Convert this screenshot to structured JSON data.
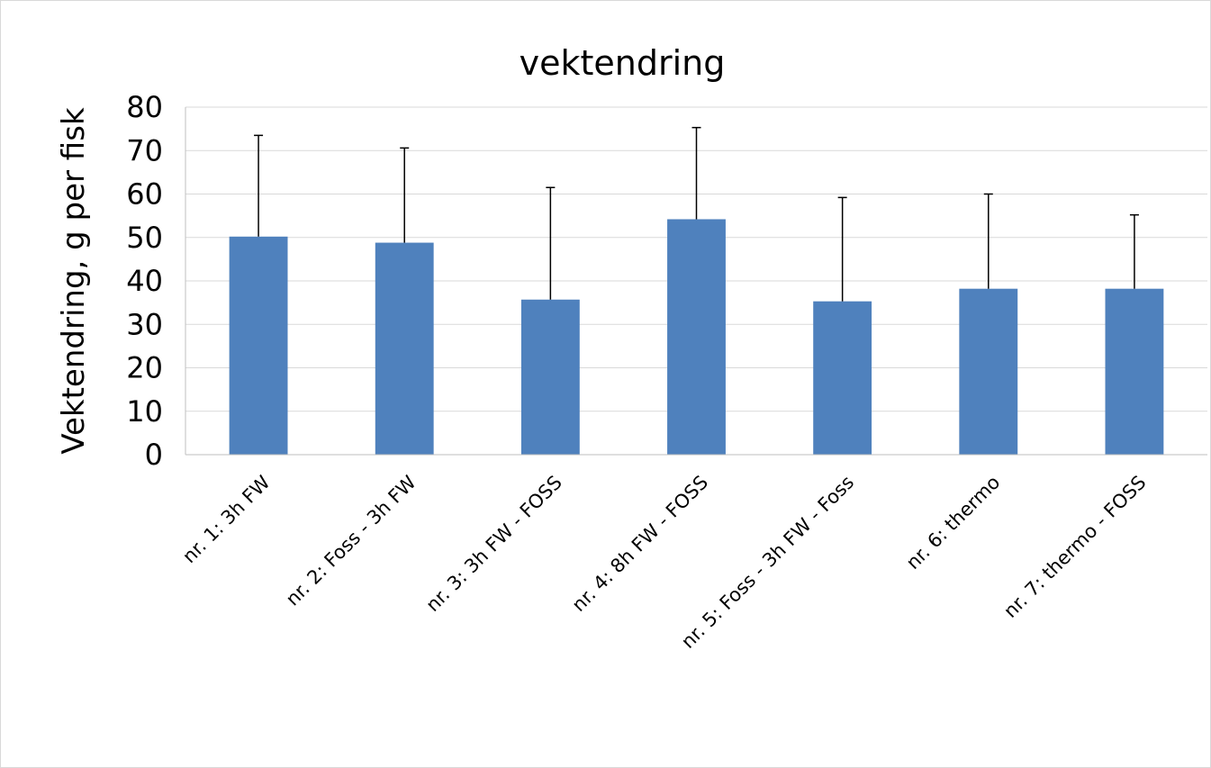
{
  "chart_data": {
    "type": "bar",
    "title": "vektendring",
    "xlabel": "",
    "ylabel": "Vektendring, g per fisk",
    "categories": [
      "nr. 1:  3h FW",
      "nr. 2:  Foss - 3h FW",
      "nr. 3: 3h FW - FOSS",
      "nr. 4: 8h FW - FOSS",
      "nr. 5:  Foss - 3h FW - Foss",
      "nr. 6:  thermo",
      "nr. 7:  thermo - FOSS"
    ],
    "values": [
      50.2,
      48.8,
      35.7,
      54.2,
      35.3,
      38.2,
      38.2
    ],
    "error_plus": [
      23.3,
      21.8,
      25.8,
      21.1,
      23.9,
      21.8,
      17.0
    ],
    "ylim": [
      0,
      80
    ],
    "yticks": [
      0,
      10,
      20,
      30,
      40,
      50,
      60,
      70,
      80
    ],
    "grid": true,
    "legend": "none",
    "colors": {
      "bar": "#4f81bd",
      "error_bar": "#000000",
      "gridline": "#d9d9d9",
      "axis": "#bfbfbf"
    }
  }
}
